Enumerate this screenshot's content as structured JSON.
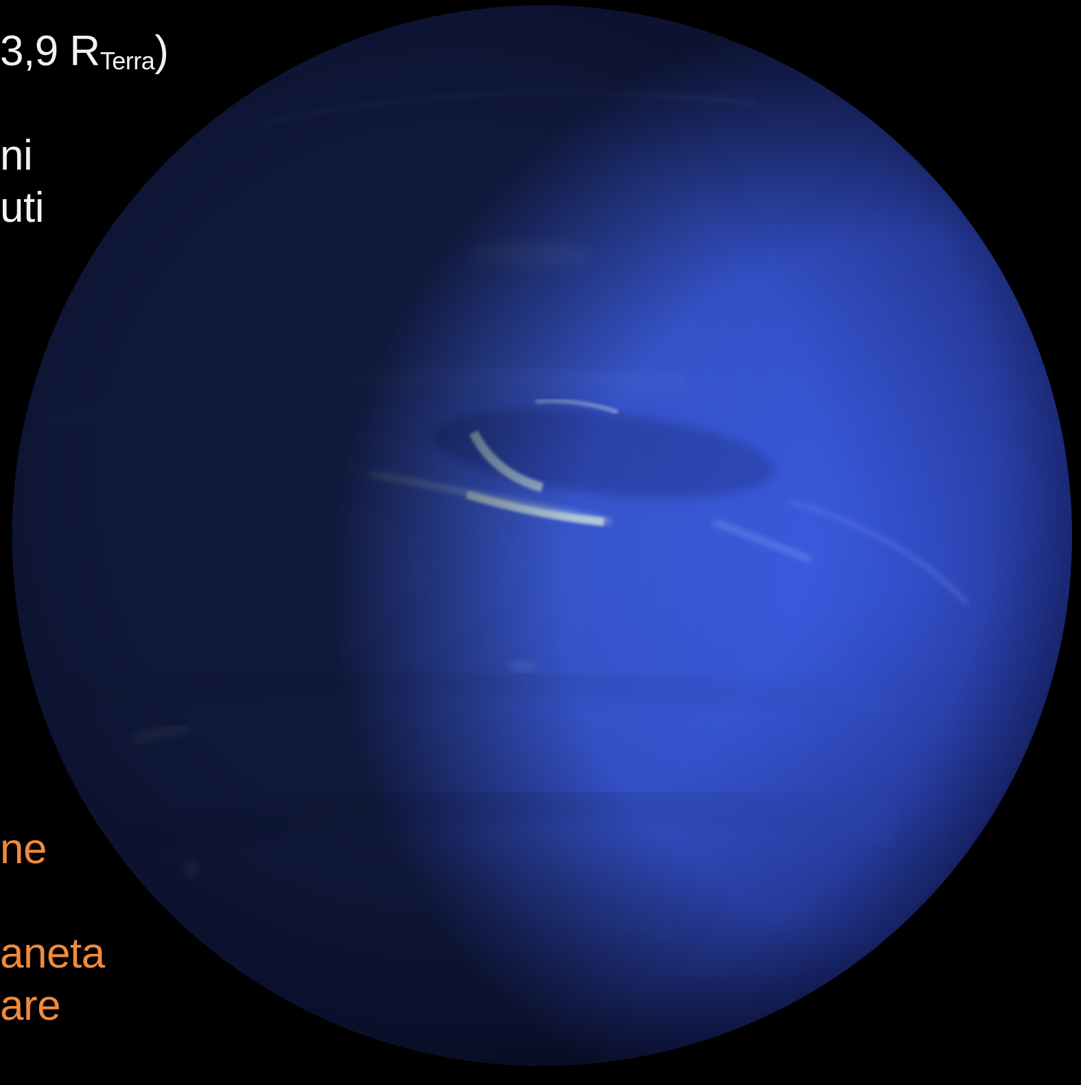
{
  "slide": {
    "colors": {
      "background": "#000000",
      "text_white": "#f2f2f2",
      "text_orange": "#f08a3c",
      "planet_blue": "#3f62e8"
    },
    "planet": {
      "icon": "neptune-planet-image"
    },
    "lines": {
      "radius_value": "3,9 R",
      "radius_sub": "Terra",
      "radius_close": ")",
      "line2": "ni",
      "line3": "uti",
      "orange1": "ne",
      "orange2": "aneta",
      "orange3": "are"
    }
  }
}
